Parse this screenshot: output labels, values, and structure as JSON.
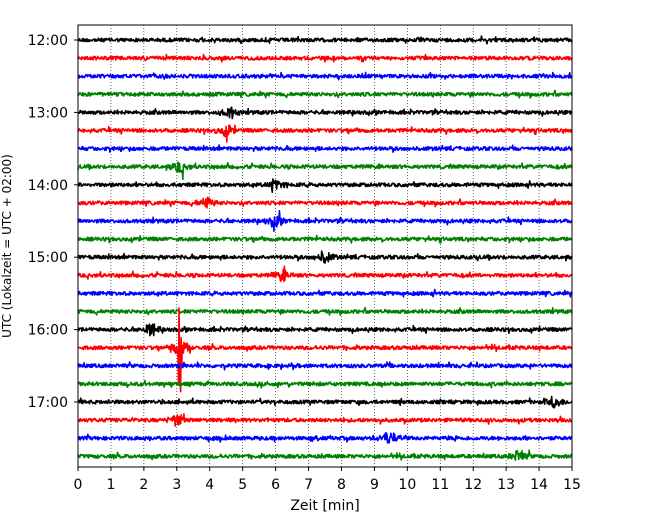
{
  "chart_data": {
    "type": "line",
    "title": "",
    "xlabel": "Zeit  [min]",
    "ylabel": "UTC (Lokalzeit = UTC + 02:00)",
    "xlim": [
      0,
      15
    ],
    "x_ticks": [
      "0",
      "1",
      "2",
      "3",
      "4",
      "5",
      "6",
      "7",
      "8",
      "9",
      "10",
      "11",
      "12",
      "13",
      "14",
      "15"
    ],
    "y_ticks": [
      "12:00",
      "13:00",
      "14:00",
      "15:00",
      "16:00",
      "17:00"
    ],
    "grid": "vertical dotted at each minute",
    "traces_per_hour": 4,
    "trace_interval_min": 15,
    "first_trace": "12:00",
    "last_trace": "17:45",
    "trace_colors": [
      "#000000",
      "#ff0000",
      "#0000ff",
      "#008000"
    ],
    "traces": [
      {
        "start": "12:00",
        "color": "#000000",
        "amplitude": "low"
      },
      {
        "start": "12:15",
        "color": "#ff0000",
        "amplitude": "low"
      },
      {
        "start": "12:30",
        "color": "#0000ff",
        "amplitude": "low"
      },
      {
        "start": "12:45",
        "color": "#008000",
        "amplitude": "low"
      },
      {
        "start": "13:00",
        "color": "#000000",
        "amplitude": "low",
        "event_min": 4.6
      },
      {
        "start": "13:15",
        "color": "#ff0000",
        "amplitude": "low",
        "event_min": 4.5
      },
      {
        "start": "13:30",
        "color": "#0000ff",
        "amplitude": "low"
      },
      {
        "start": "13:45",
        "color": "#008000",
        "amplitude": "low",
        "event_min": 3.1
      },
      {
        "start": "14:00",
        "color": "#000000",
        "amplitude": "low",
        "event_min": 6.0
      },
      {
        "start": "14:15",
        "color": "#ff0000",
        "amplitude": "low",
        "event_min": 3.9
      },
      {
        "start": "14:30",
        "color": "#0000ff",
        "amplitude": "low",
        "event_min": 6.0
      },
      {
        "start": "14:45",
        "color": "#008000",
        "amplitude": "low"
      },
      {
        "start": "15:00",
        "color": "#000000",
        "amplitude": "low",
        "event_min": 7.5
      },
      {
        "start": "15:15",
        "color": "#ff0000",
        "amplitude": "low",
        "event_min": 6.2
      },
      {
        "start": "15:30",
        "color": "#0000ff",
        "amplitude": "low"
      },
      {
        "start": "15:45",
        "color": "#008000",
        "amplitude": "low"
      },
      {
        "start": "16:00",
        "color": "#000000",
        "amplitude": "low",
        "event_min": 2.2
      },
      {
        "start": "16:15",
        "color": "#ff0000",
        "amplitude": "high",
        "event_min": 3.1
      },
      {
        "start": "16:30",
        "color": "#0000ff",
        "amplitude": "low"
      },
      {
        "start": "16:45",
        "color": "#008000",
        "amplitude": "low"
      },
      {
        "start": "17:00",
        "color": "#000000",
        "amplitude": "low",
        "event_min": 14.5
      },
      {
        "start": "17:15",
        "color": "#ff0000",
        "amplitude": "low",
        "event_min": 3.0
      },
      {
        "start": "17:30",
        "color": "#0000ff",
        "amplitude": "low",
        "event_min": 9.4
      },
      {
        "start": "17:45",
        "color": "#008000",
        "amplitude": "low",
        "event_min": 13.4
      }
    ]
  }
}
